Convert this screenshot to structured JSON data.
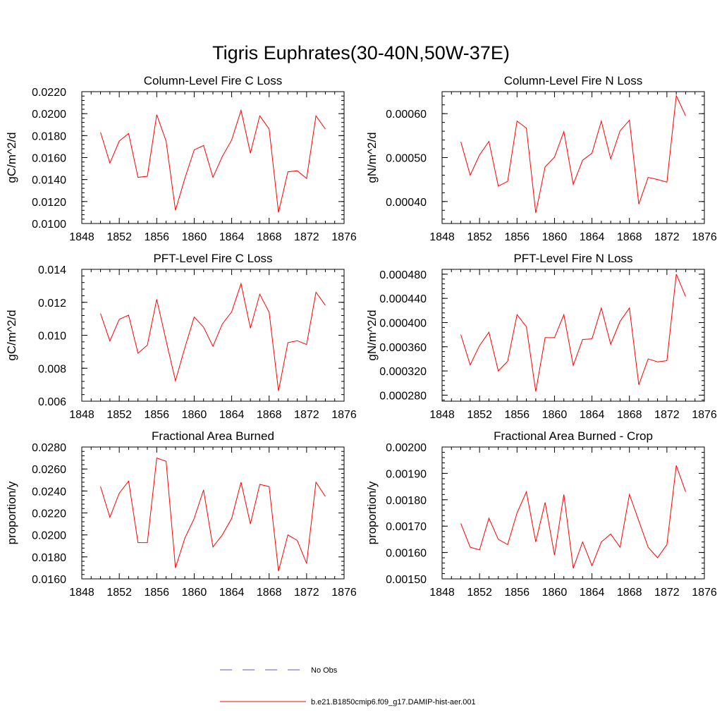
{
  "main_title": "Tigris Euphrates(30-40N,50W-37E)",
  "legend": {
    "items": [
      {
        "label": "No Obs",
        "color": "#5a5ad8",
        "style": "dashed"
      },
      {
        "label": "b.e21.B1850cmip6.f09_g17.DAMIP-hist-aer.001",
        "color": "#ff0000",
        "style": "solid"
      }
    ]
  },
  "chart_data": [
    {
      "type": "line",
      "title": "Column-Level Fire C Loss",
      "xlabel": "",
      "ylabel": "gC/m^2/d",
      "xlim": [
        1848,
        1876
      ],
      "ylim": [
        0.01,
        0.022
      ],
      "xticks": [
        "1848",
        "1852",
        "1856",
        "1860",
        "1864",
        "1868",
        "1872",
        "1876"
      ],
      "yticks": [
        "0.0100",
        "0.0120",
        "0.0140",
        "0.0160",
        "0.0180",
        "0.0200",
        "0.0220"
      ],
      "x": [
        1850,
        1851,
        1852,
        1853,
        1854,
        1855,
        1856,
        1857,
        1858,
        1859,
        1860,
        1861,
        1862,
        1863,
        1864,
        1865,
        1866,
        1867,
        1868,
        1869,
        1870,
        1871,
        1872,
        1873,
        1874
      ],
      "series": [
        {
          "name": "b.e21.B1850cmip6.f09_g17.DAMIP-hist-aer.001",
          "color": "#ff0000",
          "values": [
            0.0183,
            0.0155,
            0.0175,
            0.0182,
            0.0142,
            0.0143,
            0.0199,
            0.0175,
            0.0112,
            0.0141,
            0.0167,
            0.0171,
            0.0142,
            0.0161,
            0.0176,
            0.0203,
            0.0164,
            0.0198,
            0.0186,
            0.011,
            0.0147,
            0.0148,
            0.0141,
            0.0198,
            0.0186
          ]
        }
      ]
    },
    {
      "type": "line",
      "title": "Column-Level Fire N Loss",
      "xlabel": "",
      "ylabel": "gN/m^2/d",
      "xlim": [
        1848,
        1876
      ],
      "ylim": [
        0.00035,
        0.00065
      ],
      "xticks": [
        "1848",
        "1852",
        "1856",
        "1860",
        "1864",
        "1868",
        "1872",
        "1876"
      ],
      "yticks": [
        "0.00040",
        "0.00050",
        "0.00060"
      ],
      "x": [
        1850,
        1851,
        1852,
        1853,
        1854,
        1855,
        1856,
        1857,
        1858,
        1859,
        1860,
        1861,
        1862,
        1863,
        1864,
        1865,
        1866,
        1867,
        1868,
        1869,
        1870,
        1871,
        1872,
        1873,
        1874
      ],
      "series": [
        {
          "name": "b.e21.B1850cmip6.f09_g17.DAMIP-hist-aer.001",
          "color": "#ff0000",
          "values": [
            0.000536,
            0.00046,
            0.000506,
            0.000537,
            0.000435,
            0.000446,
            0.000583,
            0.000567,
            0.000374,
            0.000479,
            0.000501,
            0.000559,
            0.000439,
            0.000494,
            0.00051,
            0.000583,
            0.000497,
            0.000561,
            0.000585,
            0.000394,
            0.000455,
            0.00045,
            0.000444,
            0.000641,
            0.000595
          ]
        }
      ]
    },
    {
      "type": "line",
      "title": "PFT-Level Fire C Loss",
      "xlabel": "",
      "ylabel": "gC/m^2/d",
      "xlim": [
        1848,
        1876
      ],
      "ylim": [
        0.006,
        0.014
      ],
      "xticks": [
        "1848",
        "1852",
        "1856",
        "1860",
        "1864",
        "1868",
        "1872",
        "1876"
      ],
      "yticks": [
        "0.006",
        "0.008",
        "0.010",
        "0.012",
        "0.014"
      ],
      "x": [
        1850,
        1851,
        1852,
        1853,
        1854,
        1855,
        1856,
        1857,
        1858,
        1859,
        1860,
        1861,
        1862,
        1863,
        1864,
        1865,
        1866,
        1867,
        1868,
        1869,
        1870,
        1871,
        1872,
        1873,
        1874
      ],
      "series": [
        {
          "name": "b.e21.B1850cmip6.f09_g17.DAMIP-hist-aer.001",
          "color": "#ff0000",
          "values": [
            0.01132,
            0.00965,
            0.01097,
            0.01122,
            0.00891,
            0.0094,
            0.01218,
            0.00968,
            0.00724,
            0.00924,
            0.01111,
            0.01049,
            0.00933,
            0.01068,
            0.01142,
            0.01313,
            0.01043,
            0.01249,
            0.0114,
            0.00662,
            0.00955,
            0.00967,
            0.00944,
            0.01261,
            0.01182
          ]
        }
      ]
    },
    {
      "type": "line",
      "title": "PFT-Level Fire N Loss",
      "xlabel": "",
      "ylabel": "gN/m^2/d",
      "xlim": [
        1848,
        1876
      ],
      "ylim": [
        0.00027,
        0.000488
      ],
      "xticks": [
        "1848",
        "1852",
        "1856",
        "1860",
        "1864",
        "1868",
        "1872",
        "1876"
      ],
      "yticks": [
        "0.000280",
        "0.000320",
        "0.000360",
        "0.000400",
        "0.000440",
        "0.000480"
      ],
      "x": [
        1850,
        1851,
        1852,
        1853,
        1854,
        1855,
        1856,
        1857,
        1858,
        1859,
        1860,
        1861,
        1862,
        1863,
        1864,
        1865,
        1866,
        1867,
        1868,
        1869,
        1870,
        1871,
        1872,
        1873,
        1874
      ],
      "series": [
        {
          "name": "b.e21.B1850cmip6.f09_g17.DAMIP-hist-aer.001",
          "color": "#ff0000",
          "values": [
            0.00038,
            0.00033,
            0.000362,
            0.000384,
            0.00032,
            0.000336,
            0.000413,
            0.000393,
            0.000286,
            0.000375,
            0.000375,
            0.000413,
            0.000329,
            0.000372,
            0.000373,
            0.000424,
            0.000364,
            0.000402,
            0.000424,
            0.000297,
            0.00034,
            0.000335,
            0.000337,
            0.00048,
            0.000443
          ]
        }
      ]
    },
    {
      "type": "line",
      "title": "Fractional Area Burned",
      "xlabel": "",
      "ylabel": "proportion/y",
      "xlim": [
        1848,
        1876
      ],
      "ylim": [
        0.016,
        0.028
      ],
      "xticks": [
        "1848",
        "1852",
        "1856",
        "1860",
        "1864",
        "1868",
        "1872",
        "1876"
      ],
      "yticks": [
        "0.0160",
        "0.0180",
        "0.0200",
        "0.0220",
        "0.0240",
        "0.0260",
        "0.0280"
      ],
      "x": [
        1850,
        1851,
        1852,
        1853,
        1854,
        1855,
        1856,
        1857,
        1858,
        1859,
        1860,
        1861,
        1862,
        1863,
        1864,
        1865,
        1866,
        1867,
        1868,
        1869,
        1870,
        1871,
        1872,
        1873,
        1874
      ],
      "series": [
        {
          "name": "b.e21.B1850cmip6.f09_g17.DAMIP-hist-aer.001",
          "color": "#ff0000",
          "values": [
            0.0244,
            0.0216,
            0.0238,
            0.0249,
            0.0193,
            0.0193,
            0.027,
            0.0267,
            0.017,
            0.0197,
            0.0215,
            0.0241,
            0.0189,
            0.02,
            0.0215,
            0.0248,
            0.021,
            0.0246,
            0.0244,
            0.0167,
            0.02,
            0.0195,
            0.0174,
            0.0248,
            0.0235
          ]
        }
      ]
    },
    {
      "type": "line",
      "title": "Fractional Area Burned - Crop",
      "xlabel": "",
      "ylabel": "proportion/y",
      "xlim": [
        1848,
        1876
      ],
      "ylim": [
        0.0015,
        0.002
      ],
      "xticks": [
        "1848",
        "1852",
        "1856",
        "1860",
        "1864",
        "1868",
        "1872",
        "1876"
      ],
      "yticks": [
        "0.00150",
        "0.00160",
        "0.00170",
        "0.00180",
        "0.00190",
        "0.00200"
      ],
      "x": [
        1850,
        1851,
        1852,
        1853,
        1854,
        1855,
        1856,
        1857,
        1858,
        1859,
        1860,
        1861,
        1862,
        1863,
        1864,
        1865,
        1866,
        1867,
        1868,
        1869,
        1870,
        1871,
        1872,
        1873,
        1874
      ],
      "series": [
        {
          "name": "b.e21.B1850cmip6.f09_g17.DAMIP-hist-aer.001",
          "color": "#ff0000",
          "values": [
            0.00171,
            0.00162,
            0.00161,
            0.00173,
            0.00165,
            0.00163,
            0.00175,
            0.00183,
            0.00164,
            0.00179,
            0.00159,
            0.00182,
            0.00154,
            0.00164,
            0.00155,
            0.00164,
            0.00167,
            0.00162,
            0.00182,
            0.00172,
            0.00162,
            0.00158,
            0.00163,
            0.00193,
            0.00183
          ]
        }
      ]
    }
  ]
}
